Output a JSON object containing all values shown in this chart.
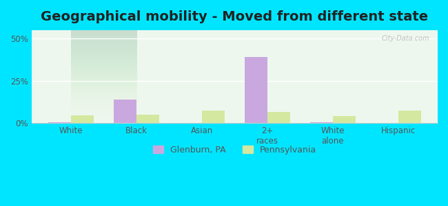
{
  "title": "Geographical mobility - Moved from different state",
  "categories": [
    "White",
    "Black",
    "Asian",
    "2+\nraces",
    "White\nalone",
    "Hispanic"
  ],
  "glenburn_values": [
    0.3,
    14.0,
    0.0,
    39.0,
    0.3,
    0.0
  ],
  "pennsylvania_values": [
    4.5,
    5.0,
    7.5,
    6.5,
    4.0,
    7.5
  ],
  "glenburn_color": "#c9a8e0",
  "pennsylvania_color": "#d4e8a0",
  "ylim": [
    0,
    55
  ],
  "yticks": [
    0,
    25,
    50
  ],
  "ytick_labels": [
    "0%",
    "25%",
    "50%"
  ],
  "bar_width": 0.35,
  "bg_outer": "#00e5ff",
  "bg_inner_top": "#f0fff0",
  "bg_inner_bottom": "#e8f5e9",
  "legend_label_glenburn": "Glenburn, PA",
  "legend_label_pennsylvania": "Pennsylvania",
  "title_fontsize": 14,
  "watermark": "City-Data.com"
}
